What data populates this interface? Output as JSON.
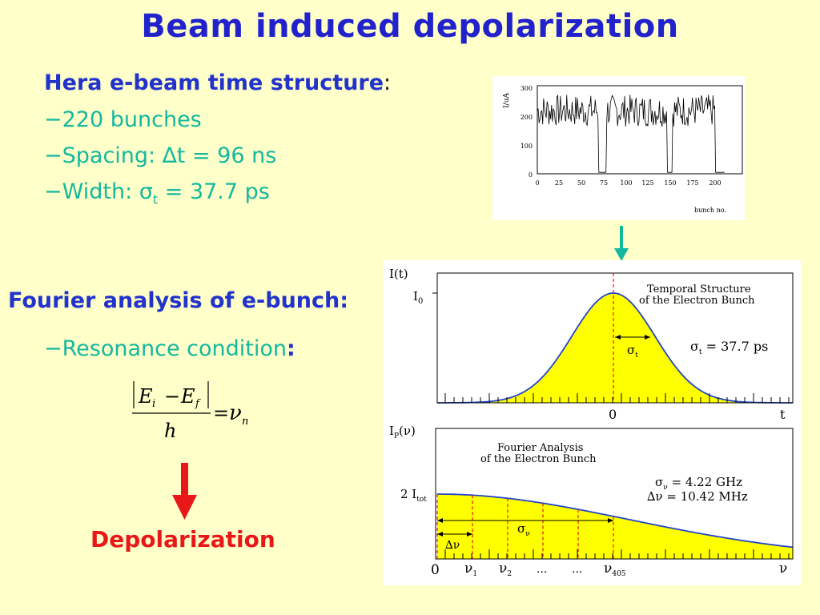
{
  "title": "Beam induced depolarization",
  "hera": {
    "heading": "Hera e-beam time structure",
    "colon": ":",
    "bullet_mark": "−",
    "items": [
      {
        "text": "220 bunches"
      },
      {
        "prefix": "Spacing: ",
        "symbol": "∆t = 96 ns"
      },
      {
        "prefix": "Width: ",
        "symbol": "σ",
        "sub": "t",
        "suffix": " = 37.7 ps"
      }
    ]
  },
  "fourier": {
    "heading": "Fourier analysis of e-bunch:",
    "resonance_label": "Resonance condition",
    "resonance_colon": ":"
  },
  "formula": {
    "E_i": "E",
    "i_sub": "i",
    "minus": "−",
    "E_f": "E",
    "f_sub": "f",
    "h": "h",
    "equals": "=",
    "nu": "ν",
    "n_sub": "n"
  },
  "result_label": "Depolarization",
  "colors": {
    "title": "#2222cc",
    "teal": "#14b8a0",
    "red": "#e81818",
    "fill_yellow": "#ffff00",
    "curve_blue": "#2244cc",
    "background": "#ffffc9"
  },
  "top_plot": {
    "ylabel": "I/uA",
    "yticks": [
      "0",
      "100",
      "200",
      "300"
    ],
    "xticks": [
      "0",
      "25",
      "50",
      "75",
      "100",
      "125",
      "150",
      "175",
      "200"
    ],
    "xlabel": "bunch no."
  },
  "middle_plot": {
    "ylabel": "I(t)",
    "peak_label": "I",
    "peak_sub": "0",
    "title_line1": "Temporal Structure",
    "title_line2": "of the Electron Bunch",
    "sigma_t_symbol": "σ",
    "sigma_t_sub": "t",
    "sigma_value": " = 37.7 ps",
    "x_zero": "0",
    "x_label": "t"
  },
  "bottom_plot": {
    "ylabel": "I",
    "ylabel_sub": "P",
    "ylabel_arg": "(ν)",
    "title_line1": "Fourier Analysis",
    "title_line2": "of the Electron Bunch",
    "sigma_nu_text": "σ",
    "sigma_nu_sub": "ν",
    "sigma_nu_value": " = 4.22 GHz",
    "delta_nu_text": "∆ν = 10.42 MHz",
    "itot_label": "2 I",
    "itot_sub": "tot",
    "sigma_arrow_label": "σ",
    "sigma_arrow_sub": "ν",
    "delta_arrow_label": "∆ν",
    "x_zero": "0",
    "nu1": "ν",
    "nu1_sub": "1",
    "nu2": "ν",
    "nu2_sub": "2",
    "dots1": "...",
    "dots2": "...",
    "nu405": "ν",
    "nu405_sub": "405",
    "x_label": "ν"
  }
}
